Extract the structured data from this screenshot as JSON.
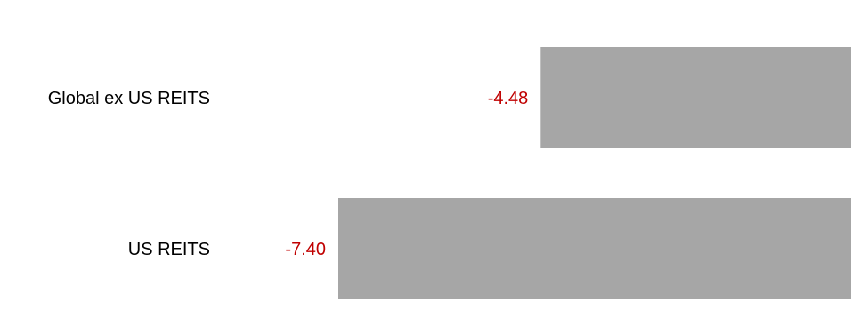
{
  "chart_data": {
    "type": "bar",
    "orientation": "horizontal",
    "categories": [
      "Global ex US REITS",
      "US REITS"
    ],
    "values": [
      -4.48,
      -7.4
    ],
    "value_labels": [
      "-4.48",
      "-7.40"
    ],
    "title": "",
    "xlabel": "",
    "ylabel": "",
    "xlim": [
      -7.4,
      0
    ],
    "grid": false,
    "legend": "none",
    "colors": {
      "bar": "#a6a6a6",
      "negative_label": "#c00000",
      "category_label": "#000000"
    }
  }
}
